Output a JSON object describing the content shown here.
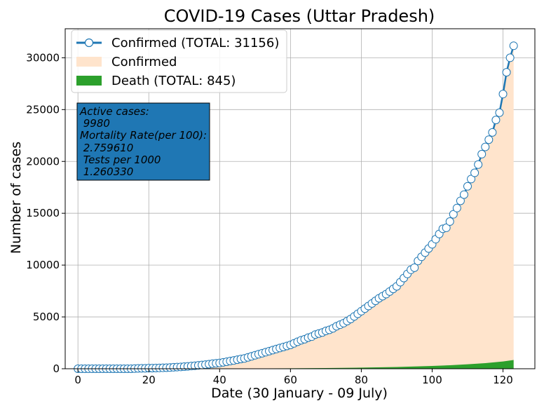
{
  "chart_data": {
    "type": "line",
    "title": "COVID-19 Cases (Uttar Pradesh)",
    "xlabel": "Date (30 January - 09 July)",
    "ylabel": "Number of cases",
    "xlim": [
      -3.6,
      129
    ],
    "ylim": [
      0,
      32800
    ],
    "x_ticks": [
      0,
      20,
      40,
      60,
      80,
      100,
      120
    ],
    "y_ticks": [
      0,
      5000,
      10000,
      15000,
      20000,
      25000,
      30000
    ],
    "grid": true,
    "legend_position": "top-left",
    "colors": {
      "confirmed_line": "#1f77b4",
      "confirmed_fill": "#ffe4cc",
      "death_fill": "#2ca02c",
      "info_box": "#1f77b4"
    },
    "legend": [
      {
        "label": "Confirmed (TOTAL: 31156)",
        "kind": "line-marker"
      },
      {
        "label": "Confirmed",
        "kind": "fill"
      },
      {
        "label": "Death (TOTAL: 845)",
        "kind": "fill-dark"
      }
    ],
    "info_box": {
      "lines": [
        "Active cases:",
        " 9980",
        "Mortality Rate(per 100):",
        " 2.759610",
        " Tests per 1000",
        " 1.260330"
      ]
    },
    "series": [
      {
        "name": "Confirmed (TOTAL: 31156)",
        "x": [
          0,
          1,
          2,
          3,
          4,
          5,
          6,
          7,
          8,
          9,
          10,
          11,
          12,
          13,
          14,
          15,
          16,
          17,
          18,
          19,
          20,
          21,
          22,
          23,
          24,
          25,
          26,
          27,
          28,
          29,
          30,
          31,
          32,
          33,
          34,
          35,
          36,
          37,
          38,
          39,
          40,
          41,
          42,
          43,
          44,
          45,
          46,
          47,
          48,
          49,
          50,
          51,
          52,
          53,
          54,
          55,
          56,
          57,
          58,
          59,
          60,
          61,
          62,
          63,
          64,
          65,
          66,
          67,
          68,
          69,
          70,
          71,
          72,
          73,
          74,
          75,
          76,
          77,
          78,
          79,
          80,
          81,
          82,
          83,
          84,
          85,
          86,
          87,
          88,
          89,
          90,
          91,
          92,
          93,
          94,
          95,
          96,
          97,
          98,
          99,
          100,
          101,
          102,
          103,
          104,
          105,
          106,
          107,
          108,
          109,
          110,
          111,
          112,
          113,
          114,
          115,
          116,
          117,
          118,
          119,
          120,
          121,
          122,
          123
        ],
        "values": [
          0,
          0,
          0,
          0,
          0,
          0,
          0,
          0,
          0,
          0,
          0,
          0,
          0,
          0,
          0,
          0,
          20,
          30,
          40,
          40,
          60,
          60,
          70,
          80,
          90,
          100,
          120,
          140,
          160,
          180,
          200,
          230,
          260,
          290,
          330,
          360,
          400,
          440,
          490,
          520,
          560,
          620,
          680,
          740,
          800,
          870,
          940,
          1000,
          1100,
          1200,
          1300,
          1400,
          1500,
          1600,
          1700,
          1800,
          1900,
          2000,
          2100,
          2200,
          2300,
          2450,
          2600,
          2750,
          2850,
          3000,
          3100,
          3300,
          3400,
          3500,
          3650,
          3750,
          3900,
          4100,
          4250,
          4400,
          4600,
          4800,
          5050,
          5300,
          5550,
          5800,
          6050,
          6300,
          6550,
          6800,
          7000,
          7200,
          7450,
          7700,
          7950,
          8350,
          8750,
          9150,
          9550,
          9750,
          10400,
          10800,
          11200,
          11600,
          12000,
          12500,
          13000,
          13500,
          13600,
          14200,
          14900,
          15500,
          16200,
          16800,
          17600,
          18300,
          18900,
          19700,
          20700,
          21400,
          22100,
          22800,
          24000,
          24700,
          26500,
          28600,
          30000,
          31156
        ]
      },
      {
        "name": "Death (TOTAL: 845)",
        "x": [
          0,
          20,
          30,
          40,
          50,
          60,
          70,
          80,
          90,
          100,
          105,
          110,
          115,
          120,
          123
        ],
        "values": [
          0,
          1,
          4,
          10,
          25,
          45,
          70,
          110,
          170,
          270,
          340,
          430,
          540,
          700,
          845
        ]
      }
    ]
  }
}
